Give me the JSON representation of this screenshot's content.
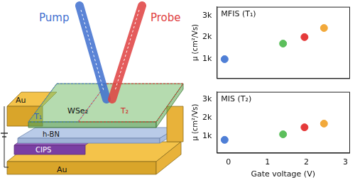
{
  "chart_data": [
    {
      "type": "scatter",
      "title": "MFIS (T₁)",
      "y_label": "μ (cm²/Vs)",
      "x": [
        -0.1,
        1.4,
        1.95,
        2.45
      ],
      "values": [
        980,
        1700,
        2000,
        2420
      ],
      "colors": [
        "#4f7fd6",
        "#5cbf5c",
        "#e53a3a",
        "#f2a93b"
      ],
      "xlim": [
        -0.3,
        3.1
      ],
      "xticks": [
        0,
        1,
        2,
        3
      ],
      "ylim": [
        100,
        3400
      ],
      "yticks": [
        {
          "value": 1000,
          "label": "1k"
        },
        {
          "value": 2000,
          "label": "2k"
        },
        {
          "value": 3000,
          "label": "3k"
        }
      ],
      "tick_labels": "y",
      "grid": false,
      "marker": "circle"
    },
    {
      "type": "scatter",
      "title": "MIS (T₂)",
      "y_label": "μ (cm²/Vs)",
      "x_label": "Gate voltage (V)",
      "x": [
        -0.1,
        1.4,
        1.95,
        2.45
      ],
      "values": [
        800,
        1100,
        1480,
        1680
      ],
      "colors": [
        "#4f7fd6",
        "#5cbf5c",
        "#e53a3a",
        "#f2a93b"
      ],
      "xlim": [
        -0.3,
        3.1
      ],
      "xticks": [
        0,
        1,
        2,
        3
      ],
      "ylim": [
        100,
        3400
      ],
      "yticks": [
        {
          "value": 1000,
          "label": "1k"
        },
        {
          "value": 2000,
          "label": "2k"
        },
        {
          "value": 3000,
          "label": "3k"
        }
      ],
      "grid": false,
      "marker": "circle"
    }
  ],
  "diagram": {
    "labels": {
      "pump": "Pump",
      "probe": "Probe",
      "top_electrode": "Au",
      "t1": "T₁",
      "channel": "WSe₂",
      "t2": "T₂",
      "dielectric": "h-BN",
      "ferroelectric": "CIPS",
      "bottom_electrode": "Au"
    }
  }
}
